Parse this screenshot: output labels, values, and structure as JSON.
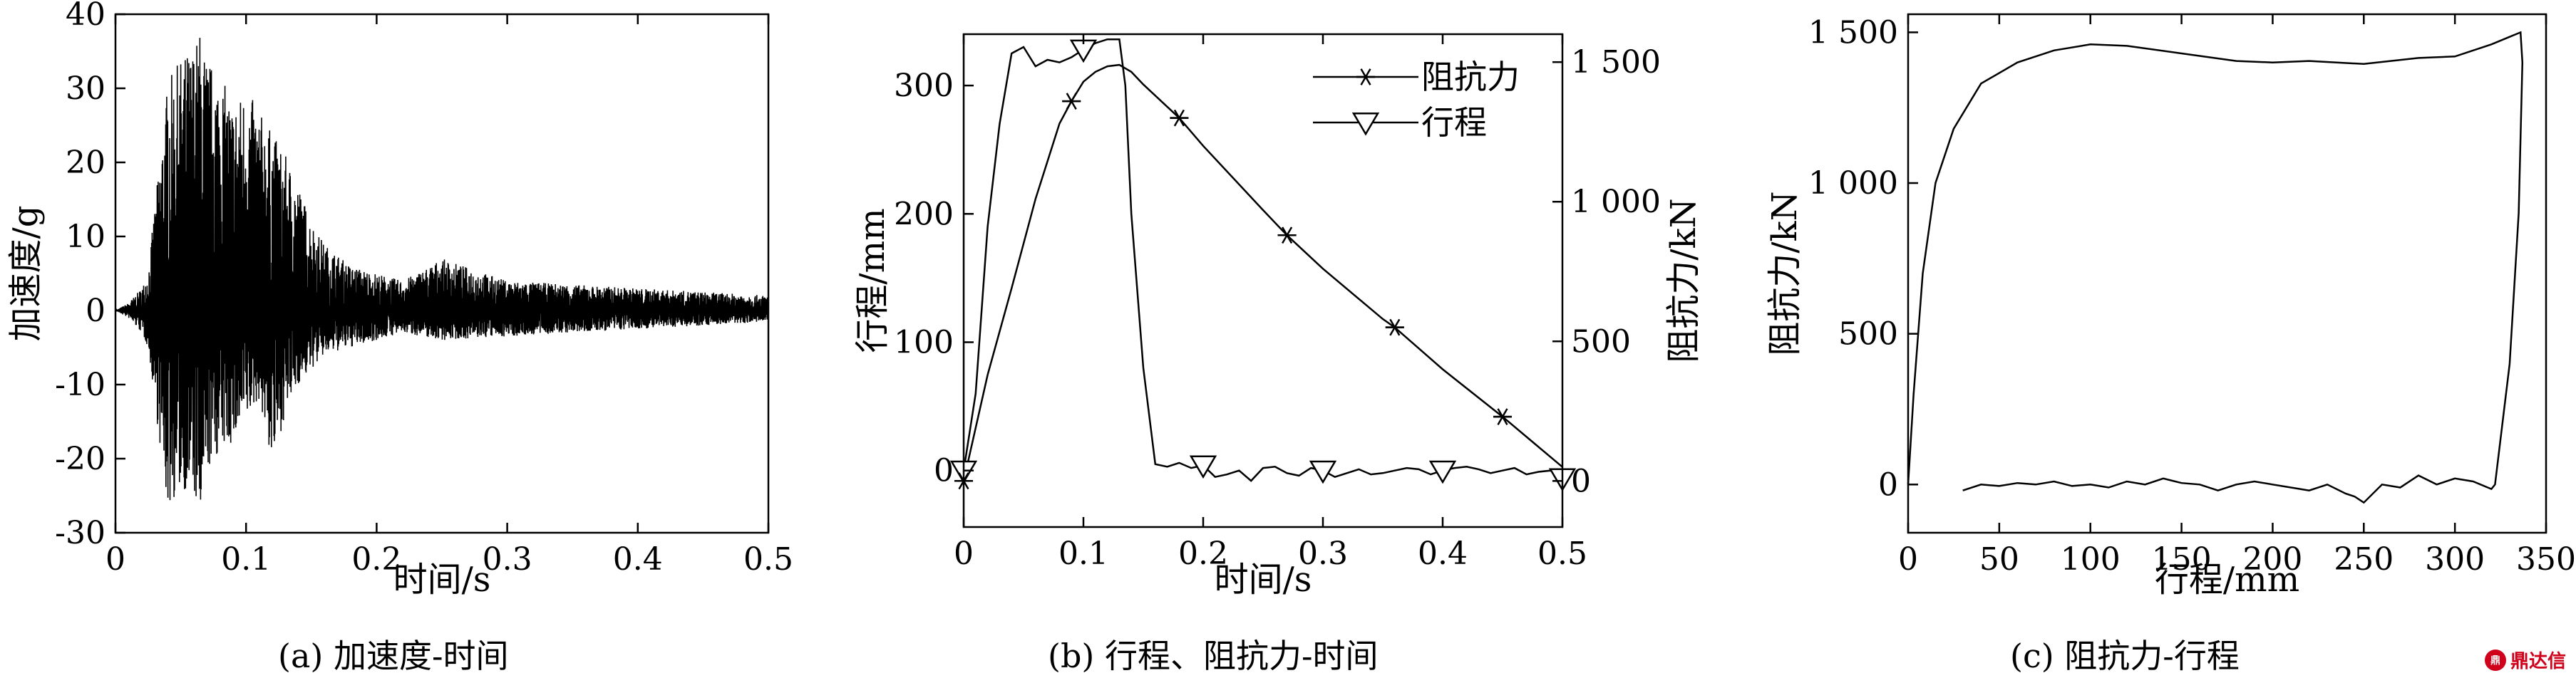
{
  "chart_data": [
    {
      "id": "a",
      "type": "line",
      "caption": "(a) 加速度-时间",
      "xlabel": "时间/s",
      "ylabel": "加速度/g",
      "xlim": [
        0,
        0.5
      ],
      "ylim": [
        -30,
        40
      ],
      "xticks": [
        0,
        0.1,
        0.2,
        0.3,
        0.4,
        0.5
      ],
      "xtick_labels": [
        "0",
        "0.1",
        "0.2",
        "0.3",
        "0.4",
        "0.5"
      ],
      "yticks": [
        -30,
        -20,
        -10,
        0,
        10,
        20,
        30,
        40
      ],
      "ytick_labels": [
        "-30",
        "-20",
        "-10",
        "0",
        "10",
        "20",
        "30",
        "40"
      ],
      "grid": false,
      "series": [
        {
          "x": [
            0,
            0.01,
            0.02,
            0.025,
            0.03,
            0.035,
            0.04,
            0.05,
            0.06,
            0.065,
            0.07,
            0.08,
            0.09,
            0.1,
            0.11,
            0.12,
            0.13,
            0.14,
            0.15,
            0.16,
            0.18,
            0.2,
            0.22,
            0.25,
            0.3,
            0.35,
            0.4,
            0.45,
            0.5
          ],
          "values": [
            0,
            1,
            3,
            5,
            14,
            22,
            31,
            34,
            36,
            38,
            34,
            32,
            28,
            30,
            27,
            24,
            21,
            17,
            12,
            9,
            6,
            5,
            4,
            7,
            4,
            3.5,
            3,
            2.5,
            2
          ],
          "lower": [
            0,
            -1,
            -3,
            -5,
            -12,
            -20,
            -27,
            -24,
            -25,
            -30,
            -22,
            -19,
            -18,
            -15,
            -12,
            -21,
            -14,
            -10,
            -8,
            -6,
            -5,
            -4,
            -3,
            -4,
            -3.5,
            -3,
            -2.5,
            -2,
            -1.5
          ]
        }
      ]
    },
    {
      "id": "b",
      "type": "line",
      "caption": "(b) 行程、阻抗力-时间",
      "xlabel": "时间/s",
      "ylabel": "行程/mm",
      "y2label": "阻抗力/kN",
      "xlim": [
        0,
        0.5
      ],
      "ylim": [
        -44,
        340
      ],
      "y2lim": [
        -165,
        1600
      ],
      "xticks": [
        0,
        0.1,
        0.2,
        0.3,
        0.4,
        0.5
      ],
      "xtick_labels": [
        "0",
        "0.1",
        "0.2",
        "0.3",
        "0.4",
        "0.5"
      ],
      "yticks": [
        0,
        100,
        200,
        300
      ],
      "ytick_labels": [
        "0",
        "100",
        "200",
        "300"
      ],
      "y2ticks": [
        0,
        500,
        1000,
        1500
      ],
      "y2tick_labels": [
        "0",
        "500",
        "1 000",
        "1 500"
      ],
      "grid": false,
      "legend": "top-right",
      "series": [
        {
          "name": "阻抗力",
          "axis": "right",
          "marker": "asterisk",
          "x": [
            0,
            0.02,
            0.04,
            0.06,
            0.08,
            0.09,
            0.1,
            0.11,
            0.12,
            0.13,
            0.14,
            0.15,
            0.18,
            0.2,
            0.25,
            0.27,
            0.3,
            0.35,
            0.36,
            0.4,
            0.45,
            0.5
          ],
          "values": [
            0,
            380,
            690,
            1010,
            1280,
            1360,
            1430,
            1465,
            1485,
            1490,
            1465,
            1420,
            1300,
            1200,
            970,
            880,
            760,
            580,
            550,
            400,
            230,
            50
          ],
          "marker_x": [
            0,
            0.09,
            0.18,
            0.27,
            0.36,
            0.45
          ],
          "marker_values": [
            0,
            1360,
            1300,
            880,
            550,
            230
          ]
        },
        {
          "name": "行程",
          "axis": "left",
          "marker": "triangle-down",
          "x": [
            0,
            0.01,
            0.02,
            0.03,
            0.04,
            0.05,
            0.06,
            0.07,
            0.08,
            0.09,
            0.1,
            0.11,
            0.12,
            0.13,
            0.135,
            0.14,
            0.15,
            0.16,
            0.17,
            0.18,
            0.19,
            0.2,
            0.21,
            0.22,
            0.23,
            0.24,
            0.25,
            0.26,
            0.27,
            0.28,
            0.29,
            0.3,
            0.31,
            0.32,
            0.33,
            0.34,
            0.35,
            0.36,
            0.37,
            0.38,
            0.39,
            0.4,
            0.41,
            0.42,
            0.43,
            0.44,
            0.45,
            0.46,
            0.47,
            0.48,
            0.49,
            0.5
          ],
          "values": [
            0,
            60,
            190,
            270,
            325,
            330,
            315,
            320,
            318,
            322,
            328,
            333,
            336,
            336,
            300,
            200,
            80,
            5,
            3,
            6,
            2,
            4,
            -5,
            -3,
            0,
            -8,
            2,
            3,
            -2,
            -4,
            2,
            0,
            -5,
            -2,
            1,
            -3,
            -2,
            0,
            2,
            1,
            -3,
            0,
            2,
            3,
            1,
            -2,
            0,
            2,
            -3,
            -1,
            0,
            -6
          ],
          "marker_x": [
            0,
            0.1,
            0.2,
            0.3,
            0.4,
            0.5
          ],
          "marker_values": [
            0,
            328,
            4,
            0,
            0,
            -6
          ]
        }
      ]
    },
    {
      "id": "c",
      "type": "line",
      "caption": "(c) 阻抗力-行程",
      "xlabel": "行程/mm",
      "ylabel": "阻抗力/kN",
      "xlim": [
        0,
        350
      ],
      "ylim": [
        -160,
        1560
      ],
      "xticks": [
        0,
        50,
        100,
        150,
        200,
        250,
        300,
        350
      ],
      "xtick_labels": [
        "0",
        "50",
        "100",
        "150",
        "200",
        "250",
        "300",
        "350"
      ],
      "yticks": [
        0,
        500,
        1000,
        1500
      ],
      "ytick_labels": [
        "0",
        "500",
        "1 000",
        "1 500"
      ],
      "grid": false,
      "series": [
        {
          "x": [
            0,
            3,
            8,
            15,
            25,
            40,
            60,
            80,
            100,
            120,
            150,
            180,
            200,
            220,
            250,
            280,
            300,
            320,
            330,
            336,
            337,
            335,
            330,
            322,
            320,
            310,
            300,
            290,
            280,
            270,
            260,
            250,
            245,
            240,
            230,
            220,
            210,
            200,
            190,
            180,
            170,
            160,
            150,
            140,
            130,
            120,
            110,
            100,
            90,
            80,
            70,
            60,
            50,
            40,
            30
          ],
          "values": [
            0,
            300,
            700,
            1000,
            1180,
            1330,
            1400,
            1440,
            1460,
            1455,
            1430,
            1405,
            1400,
            1405,
            1395,
            1415,
            1420,
            1460,
            1485,
            1500,
            1400,
            900,
            400,
            0,
            -15,
            10,
            20,
            0,
            30,
            -10,
            0,
            -60,
            -40,
            -30,
            0,
            -20,
            -10,
            0,
            10,
            0,
            -20,
            0,
            5,
            20,
            0,
            10,
            -10,
            0,
            -5,
            10,
            0,
            5,
            -5,
            0,
            -20
          ]
        }
      ]
    }
  ],
  "watermark": {
    "icon": "seal-icon",
    "text": "鼎达信"
  }
}
